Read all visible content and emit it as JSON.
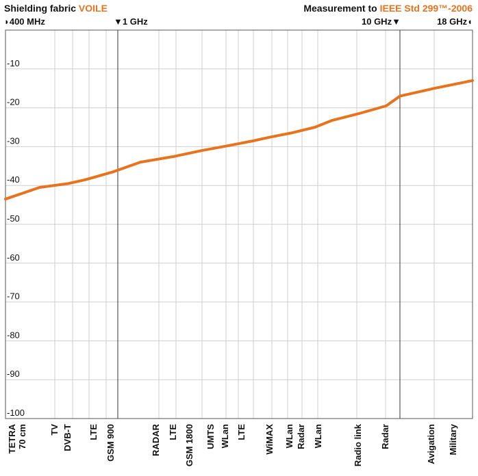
{
  "header": {
    "left_prefix": "Shielding fabric ",
    "left_accent": "VOILE",
    "right_prefix": "Measurement to ",
    "right_accent": "IEEE Std 299™-2006"
  },
  "freq_markers": {
    "m400": "◗400 MHz",
    "m1g": "▼1 GHz",
    "m10g": "10 GHz▼",
    "m18g": "18 GHz◖"
  },
  "colors": {
    "accent": "#e8731e",
    "grid": "#cfcfcf",
    "divider": "#333333"
  },
  "chart_data": {
    "type": "line",
    "title": "",
    "xlabel": "",
    "ylabel": "",
    "ylim": [
      -100,
      0
    ],
    "yticks": [
      -10,
      -20,
      -30,
      -40,
      -50,
      -60,
      -70,
      -80,
      -90,
      -100
    ],
    "grid": true,
    "category_labels": [
      "TETRA\n70 cm",
      "TV",
      "DVB-T",
      "LTE",
      "GSM 900",
      "RADAR",
      "LTE",
      "GSM 1800",
      "UMTS",
      "WLan",
      "LTE",
      "WiMAX",
      "WLan",
      "Radar",
      "WLan",
      "Radio link",
      "Radar",
      "Avigation",
      "Military"
    ],
    "series": [
      {
        "color": "#e8731e",
        "points": [
          {
            "x": 0,
            "y": -43.5
          },
          {
            "x": 1,
            "y": -40.5
          },
          {
            "x": 2,
            "y": -39.5
          },
          {
            "x": 3,
            "y": -38.5
          },
          {
            "x": 4,
            "y": -36.5
          },
          {
            "x": 5,
            "y": -34
          },
          {
            "x": 6,
            "y": -32.5
          },
          {
            "x": 7,
            "y": -31
          },
          {
            "x": 8,
            "y": -29.7
          },
          {
            "x": 9,
            "y": -28.5
          },
          {
            "x": 10,
            "y": -27.5
          },
          {
            "x": 11,
            "y": -26.5
          },
          {
            "x": 12,
            "y": -25
          },
          {
            "x": 13,
            "y": -23.3
          },
          {
            "x": 14,
            "y": -21.5
          },
          {
            "x": 15,
            "y": -19.5
          },
          {
            "x": 16,
            "y": -17
          },
          {
            "x": 17,
            "y": -15
          },
          {
            "x": 18,
            "y": -13
          }
        ]
      }
    ]
  }
}
